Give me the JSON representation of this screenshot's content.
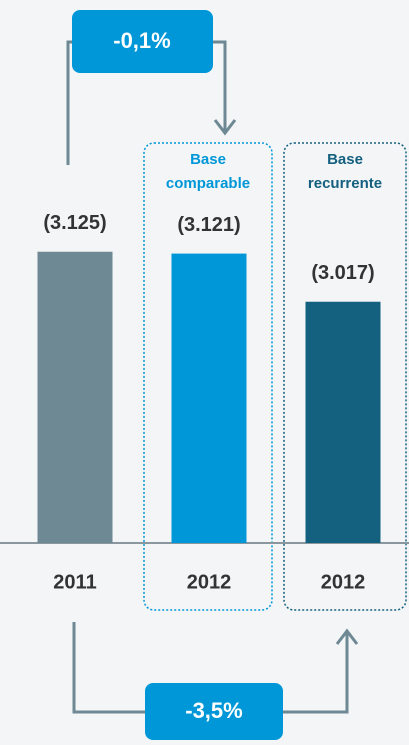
{
  "chart_data": {
    "type": "bar",
    "categories": [
      "2011",
      "2012",
      "2012"
    ],
    "values": [
      3125,
      3121,
      3017
    ],
    "value_labels": [
      "(3.125)",
      "(3.121)",
      "(3.017)"
    ],
    "colors": [
      "#6e8894",
      "#0097d8",
      "#14607f"
    ],
    "ylim": [
      2496,
      3200
    ],
    "group_labels": [
      "Base comparable",
      "Base recurrente"
    ],
    "annotations": [
      "-0,1%",
      "-3,5%"
    ]
  }
}
